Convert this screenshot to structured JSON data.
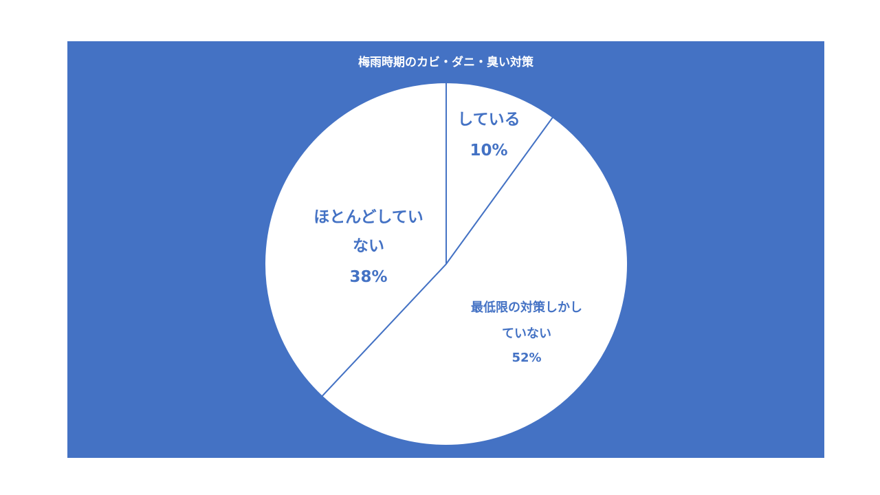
{
  "chart_data": {
    "type": "pie",
    "title": "梅雨時期のカビ・ダニ・臭い対策",
    "slices": [
      {
        "label": "している",
        "value": 10,
        "display": "10%"
      },
      {
        "label": "最低限の対策しかしていない",
        "value": 52,
        "display": "52%"
      },
      {
        "label": "ほとんどしていない",
        "value": 38,
        "display": "38%"
      }
    ],
    "start_angle_deg": 0,
    "direction": "clockwise",
    "legend": "none",
    "colors": {
      "background": "#4472C4",
      "slice_fill": "#FFFFFF",
      "slice_border": "#4472C4",
      "label_text": "#4472C4",
      "title_text": "#FFFFFF"
    }
  }
}
